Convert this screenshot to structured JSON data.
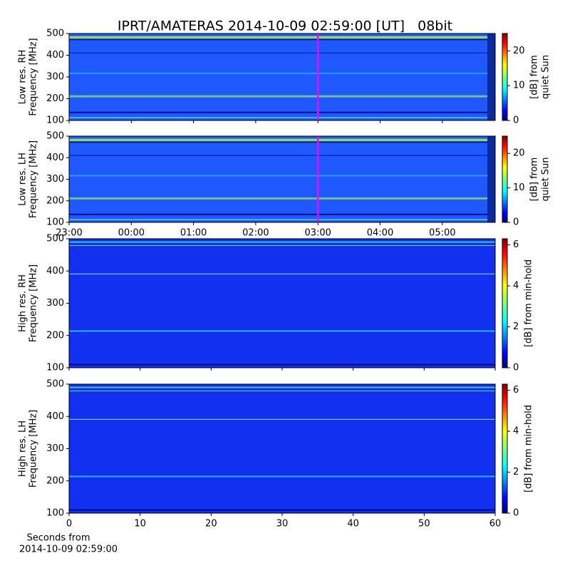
{
  "title": "IPRT/AMATERAS 2014-10-09 02:59:00 [UT]   08bit",
  "chart_data": [
    {
      "type": "heatmap",
      "ylabel": [
        "Low res. RH",
        "Frequency [MHz]"
      ],
      "ylim": [
        100,
        500
      ],
      "yticks": [
        100,
        200,
        300,
        400,
        500
      ],
      "xlim": [
        23,
        29.85
      ],
      "xticks": [
        23,
        24,
        25,
        26,
        27,
        28,
        29
      ],
      "xticklabels": false,
      "marker_x": 27,
      "marker_color": "#ff00ff",
      "colormap": "jet",
      "clim": [
        0,
        25
      ],
      "cticks": [
        0,
        10,
        20
      ],
      "clabel": [
        "[dB] from",
        "quiet Sun"
      ]
    },
    {
      "type": "heatmap",
      "ylabel": [
        "Low res. LH",
        "Frequency [MHz]"
      ],
      "ylim": [
        100,
        500
      ],
      "yticks": [
        100,
        200,
        300,
        400,
        500
      ],
      "xlim": [
        23,
        29.85
      ],
      "xticks": [
        {
          "value": 23,
          "label": "23:00"
        },
        {
          "value": 24,
          "label": "00:00"
        },
        {
          "value": 25,
          "label": "01:00"
        },
        {
          "value": 26,
          "label": "02:00"
        },
        {
          "value": 27,
          "label": "03:00"
        },
        {
          "value": 28,
          "label": "04:00"
        },
        {
          "value": 29,
          "label": "05:00"
        }
      ],
      "xticklabels": true,
      "marker_x": 27,
      "marker_color": "#ff00ff",
      "colormap": "jet",
      "clim": [
        0,
        25
      ],
      "cticks": [
        0,
        10,
        20
      ],
      "clabel": [
        "[dB] from",
        "quiet Sun"
      ]
    },
    {
      "type": "heatmap",
      "ylabel": [
        "High res. RH",
        "Frequency [MHz]"
      ],
      "ylim": [
        100,
        500
      ],
      "yticks": [
        100,
        200,
        300,
        400,
        500
      ],
      "xlim": [
        0,
        60
      ],
      "xticks": [
        0,
        10,
        20,
        30,
        40,
        50,
        60
      ],
      "xticklabels": false,
      "colormap": "jet",
      "clim": [
        0,
        6.3
      ],
      "cticks": [
        0,
        2,
        4,
        6
      ],
      "clabel": [
        "[dB] from min-hold"
      ]
    },
    {
      "type": "heatmap",
      "ylabel": [
        "High res. LH",
        "Frequency [MHz]"
      ],
      "ylim": [
        100,
        500
      ],
      "yticks": [
        100,
        200,
        300,
        400,
        500
      ],
      "xlim": [
        0,
        60
      ],
      "xticks": [
        0,
        10,
        20,
        30,
        40,
        50,
        60
      ],
      "xticklabels": true,
      "xlabel": [
        "Seconds from",
        "2014-10-09 02:59:00"
      ],
      "colormap": "jet",
      "clim": [
        0,
        6.3
      ],
      "cticks": [
        0,
        2,
        4,
        6
      ],
      "clabel": [
        "[dB] from min-hold"
      ]
    }
  ]
}
